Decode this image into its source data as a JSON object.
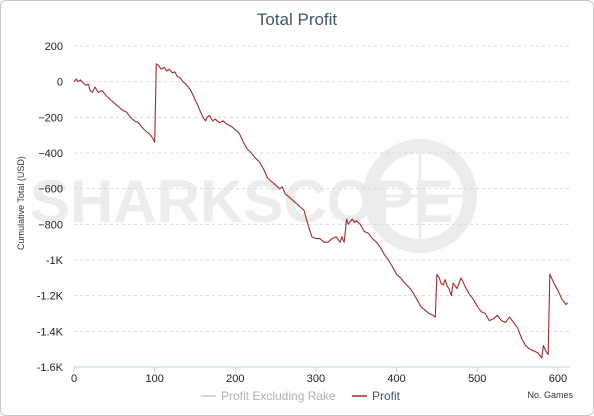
{
  "chart_data": {
    "type": "line",
    "title": "Total Profit",
    "xlabel": "No. Games",
    "ylabel": "Cumulative Total (USD)",
    "xlim": [
      0,
      615
    ],
    "ylim": [
      -1600,
      200
    ],
    "x_ticks": [
      0,
      100,
      200,
      300,
      400,
      500,
      600
    ],
    "y_ticks": [
      200,
      0,
      -200,
      -400,
      -600,
      -800,
      -1000,
      -1200,
      -1400,
      -1600
    ],
    "y_tick_labels": [
      "200",
      "0",
      "−200",
      "−400",
      "−600",
      "−800",
      "-1K",
      "-1.2K",
      "-1.4K",
      "-1.6K"
    ],
    "grid": true,
    "legend_position": "bottom",
    "watermark": "SHARKSCOPE",
    "series": [
      {
        "name": "Profit Excluding Rake",
        "color": "#c8c8c8",
        "x": [],
        "y": []
      },
      {
        "name": "Profit",
        "color": "#a52a2a",
        "x": [
          0,
          3,
          5,
          8,
          10,
          12,
          15,
          18,
          20,
          23,
          26,
          30,
          35,
          40,
          45,
          50,
          55,
          60,
          65,
          70,
          75,
          80,
          85,
          90,
          95,
          98,
          100,
          102,
          105,
          108,
          112,
          115,
          118,
          122,
          125,
          128,
          132,
          135,
          140,
          145,
          150,
          155,
          160,
          163,
          165,
          168,
          172,
          175,
          180,
          185,
          190,
          195,
          200,
          205,
          210,
          215,
          220,
          225,
          230,
          235,
          240,
          245,
          250,
          255,
          258,
          262,
          265,
          270,
          275,
          280,
          285,
          290,
          295,
          300,
          305,
          310,
          315,
          320,
          325,
          330,
          332,
          335,
          338,
          340,
          345,
          348,
          350,
          355,
          360,
          365,
          370,
          375,
          380,
          385,
          390,
          395,
          400,
          405,
          410,
          415,
          420,
          425,
          430,
          435,
          440,
          445,
          448,
          450,
          453,
          455,
          458,
          460,
          463,
          465,
          468,
          470,
          475,
          480,
          485,
          490,
          495,
          500,
          505,
          510,
          515,
          520,
          525,
          530,
          535,
          540,
          545,
          550,
          555,
          560,
          565,
          570,
          575,
          580,
          582,
          585,
          588,
          590,
          592,
          595,
          600,
          605,
          610,
          612
        ],
        "y": [
          0,
          15,
          0,
          10,
          0,
          -10,
          -20,
          -15,
          -50,
          -60,
          -30,
          -60,
          -50,
          -80,
          -100,
          -120,
          -140,
          -160,
          -170,
          -200,
          -220,
          -230,
          -260,
          -280,
          -300,
          -320,
          -340,
          100,
          90,
          70,
          80,
          60,
          70,
          50,
          55,
          30,
          20,
          0,
          -20,
          -50,
          -100,
          -150,
          -200,
          -220,
          -200,
          -190,
          -220,
          -210,
          -230,
          -220,
          -240,
          -250,
          -270,
          -290,
          -340,
          -380,
          -400,
          -430,
          -450,
          -490,
          -540,
          -560,
          -580,
          -600,
          -590,
          -630,
          -640,
          -660,
          -680,
          -700,
          -720,
          -800,
          -870,
          -880,
          -880,
          -900,
          -900,
          -880,
          -870,
          -900,
          -870,
          -900,
          -770,
          -800,
          -770,
          -790,
          -780,
          -800,
          -840,
          -850,
          -880,
          -900,
          -930,
          -970,
          -1000,
          -1040,
          -1080,
          -1100,
          -1130,
          -1150,
          -1180,
          -1220,
          -1260,
          -1280,
          -1300,
          -1310,
          -1320,
          -1080,
          -1100,
          -1130,
          -1140,
          -1110,
          -1150,
          -1160,
          -1200,
          -1130,
          -1160,
          -1100,
          -1150,
          -1190,
          -1220,
          -1260,
          -1290,
          -1300,
          -1340,
          -1330,
          -1310,
          -1340,
          -1350,
          -1320,
          -1350,
          -1380,
          -1440,
          -1480,
          -1500,
          -1510,
          -1520,
          -1550,
          -1480,
          -1510,
          -1530,
          -1080,
          -1100,
          -1130,
          -1170,
          -1220,
          -1250,
          -1240
        ]
      }
    ]
  }
}
